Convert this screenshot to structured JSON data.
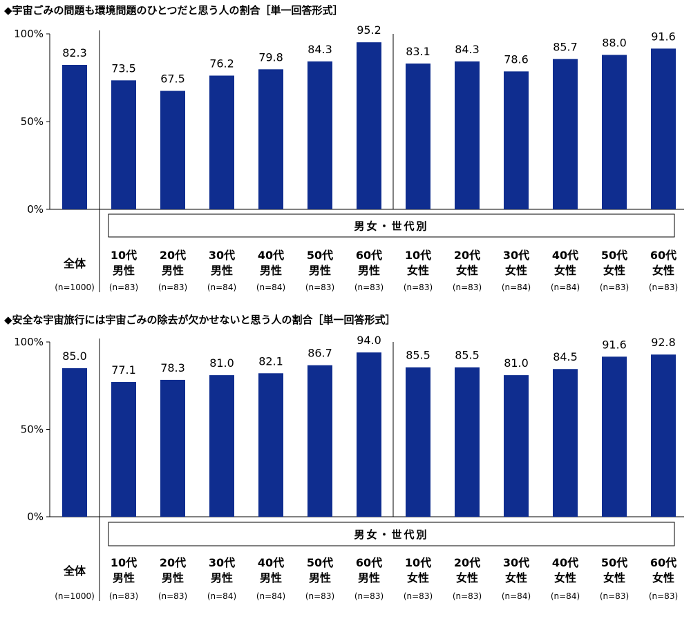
{
  "colors": {
    "bar": "#0f2d8f",
    "axis": "#000000"
  },
  "chart_data": [
    {
      "type": "bar",
      "title": "◆宇宙ごみの問題も環境問題のひとつだと思う人の割合［単一回答形式］",
      "ylim": [
        0,
        100
      ],
      "yticks": [
        "0%",
        "50%",
        "100%"
      ],
      "group_label": "男女・世代別",
      "categories": [
        {
          "l1": "全体",
          "l2": "",
          "n": "(n=1000)"
        },
        {
          "l1": "10代",
          "l2": "男性",
          "n": "(n=83)"
        },
        {
          "l1": "20代",
          "l2": "男性",
          "n": "(n=83)"
        },
        {
          "l1": "30代",
          "l2": "男性",
          "n": "(n=84)"
        },
        {
          "l1": "40代",
          "l2": "男性",
          "n": "(n=84)"
        },
        {
          "l1": "50代",
          "l2": "男性",
          "n": "(n=83)"
        },
        {
          "l1": "60代",
          "l2": "男性",
          "n": "(n=83)"
        },
        {
          "l1": "10代",
          "l2": "女性",
          "n": "(n=83)"
        },
        {
          "l1": "20代",
          "l2": "女性",
          "n": "(n=83)"
        },
        {
          "l1": "30代",
          "l2": "女性",
          "n": "(n=84)"
        },
        {
          "l1": "40代",
          "l2": "女性",
          "n": "(n=84)"
        },
        {
          "l1": "50代",
          "l2": "女性",
          "n": "(n=83)"
        },
        {
          "l1": "60代",
          "l2": "女性",
          "n": "(n=83)"
        }
      ],
      "values": [
        82.3,
        73.5,
        67.5,
        76.2,
        79.8,
        84.3,
        95.2,
        83.1,
        84.3,
        78.6,
        85.7,
        88.0,
        91.6
      ],
      "labels": [
        "82.3",
        "73.5",
        "67.5",
        "76.2",
        "79.8",
        "84.3",
        "95.2",
        "83.1",
        "84.3",
        "78.6",
        "85.7",
        "88.0",
        "91.6"
      ]
    },
    {
      "type": "bar",
      "title": "◆安全な宇宙旅行には宇宙ごみの除去が欠かせないと思う人の割合［単一回答形式］",
      "ylim": [
        0,
        100
      ],
      "yticks": [
        "0%",
        "50%",
        "100%"
      ],
      "group_label": "男女・世代別",
      "categories": [
        {
          "l1": "全体",
          "l2": "",
          "n": "(n=1000)"
        },
        {
          "l1": "10代",
          "l2": "男性",
          "n": "(n=83)"
        },
        {
          "l1": "20代",
          "l2": "男性",
          "n": "(n=83)"
        },
        {
          "l1": "30代",
          "l2": "男性",
          "n": "(n=84)"
        },
        {
          "l1": "40代",
          "l2": "男性",
          "n": "(n=84)"
        },
        {
          "l1": "50代",
          "l2": "男性",
          "n": "(n=83)"
        },
        {
          "l1": "60代",
          "l2": "男性",
          "n": "(n=83)"
        },
        {
          "l1": "10代",
          "l2": "女性",
          "n": "(n=83)"
        },
        {
          "l1": "20代",
          "l2": "女性",
          "n": "(n=83)"
        },
        {
          "l1": "30代",
          "l2": "女性",
          "n": "(n=84)"
        },
        {
          "l1": "40代",
          "l2": "女性",
          "n": "(n=84)"
        },
        {
          "l1": "50代",
          "l2": "女性",
          "n": "(n=83)"
        },
        {
          "l1": "60代",
          "l2": "女性",
          "n": "(n=83)"
        }
      ],
      "values": [
        85.0,
        77.1,
        78.3,
        81.0,
        82.1,
        86.7,
        94.0,
        85.5,
        85.5,
        81.0,
        84.5,
        91.6,
        92.8
      ],
      "labels": [
        "85.0",
        "77.1",
        "78.3",
        "81.0",
        "82.1",
        "86.7",
        "94.0",
        "85.5",
        "85.5",
        "81.0",
        "84.5",
        "91.6",
        "92.8"
      ]
    }
  ]
}
